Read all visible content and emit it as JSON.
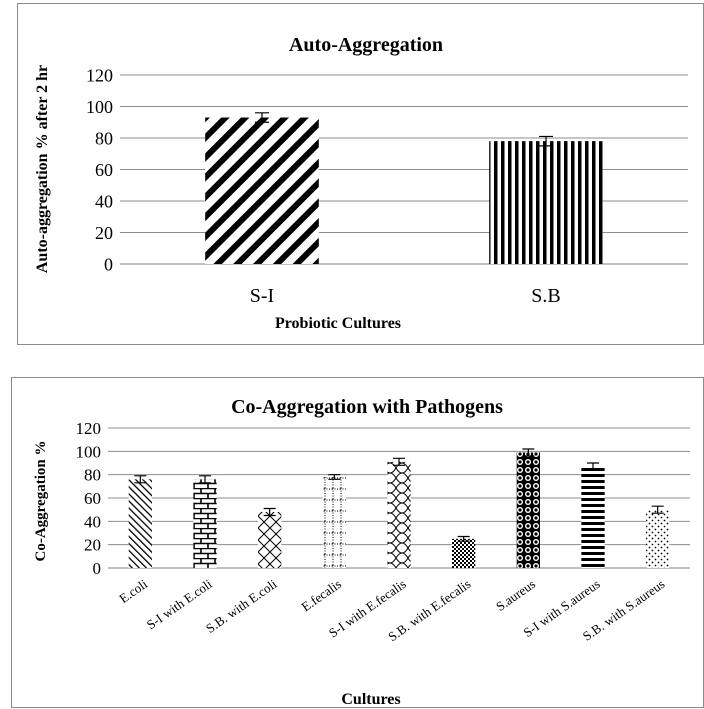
{
  "chart_data": [
    {
      "type": "bar",
      "title": "Auto-Aggregation",
      "xlabel": "Probiotic Cultures",
      "ylabel": "Auto-aggregation % after 2 hr",
      "categories": [
        "S-I",
        "S.B"
      ],
      "values": [
        93,
        78
      ],
      "errors": [
        3,
        3
      ],
      "ylim": [
        0,
        120
      ],
      "yticks": [
        "0",
        "20",
        "40",
        "60",
        "80",
        "100",
        "120"
      ],
      "grid": true,
      "bar_patterns": [
        "diagonal-stripes",
        "vertical-stripes"
      ]
    },
    {
      "type": "bar",
      "title": "Co-Aggregation with Pathogens",
      "xlabel": "Cultures",
      "ylabel": "Co-Aggregation %",
      "categories": [
        "E.coli",
        "S-I with E.coli",
        "S.B. with E.coli",
        "E.fecalis",
        "S-I with E.fecalis",
        "S.B. with E.fecalis",
        "S.aureus",
        "S-I with S.aureus",
        "S.B. with S.aureus"
      ],
      "values": [
        76,
        76,
        48,
        78,
        91,
        25,
        99,
        87,
        50
      ],
      "errors": [
        3,
        3,
        3,
        2,
        3,
        2,
        3,
        3,
        3
      ],
      "ylim": [
        0,
        120
      ],
      "yticks": [
        "0",
        "20",
        "40",
        "60",
        "80",
        "100",
        "120"
      ],
      "grid": true,
      "bar_patterns": [
        "light-diagonal",
        "brick",
        "diamond-lattice",
        "dotted-grid",
        "zigzag",
        "checker",
        "spheres",
        "horizontal-stripes",
        "sparse-dots"
      ]
    }
  ]
}
